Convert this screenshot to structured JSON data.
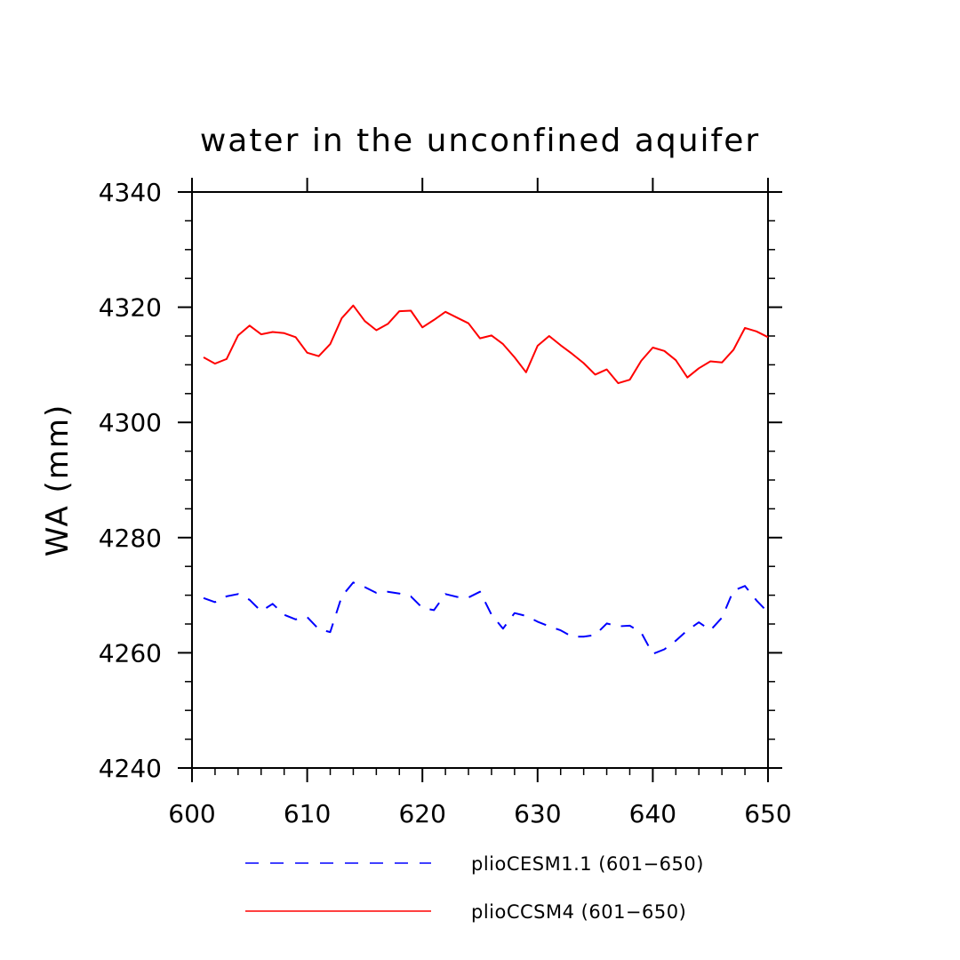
{
  "chart_data": {
    "type": "line",
    "title": "water in the unconfined aquifer",
    "xlabel": "",
    "ylabel": "WA  (mm)",
    "xlim": [
      600,
      650
    ],
    "ylim": [
      4240,
      4340
    ],
    "x_ticks": [
      "600",
      "610",
      "620",
      "630",
      "640",
      "650"
    ],
    "y_ticks": [
      "4240",
      "4260",
      "4280",
      "4300",
      "4320",
      "4340"
    ],
    "grid": false,
    "legend_position": "bottom",
    "x": [
      601,
      602,
      603,
      604,
      605,
      606,
      607,
      608,
      609,
      610,
      611,
      612,
      613,
      614,
      615,
      616,
      617,
      618,
      619,
      620,
      621,
      622,
      623,
      624,
      625,
      626,
      627,
      628,
      629,
      630,
      631,
      632,
      633,
      634,
      635,
      636,
      637,
      638,
      639,
      640,
      641,
      642,
      643,
      644,
      645,
      646,
      647,
      648,
      649,
      650
    ],
    "series": [
      {
        "name": "plioCESM1.1 (601−650)",
        "color": "#0000ff",
        "style": "dashed",
        "values": [
          4269.5,
          4268.8,
          4269.8,
          4270.2,
          4269.2,
          4267.2,
          4268.5,
          4266.6,
          4265.8,
          4266.2,
          4264.1,
          4263.6,
          4269.8,
          4272.2,
          4271.4,
          4270.4,
          4270.6,
          4270.3,
          4269.8,
          4267.8,
          4267.4,
          4270.2,
          4269.7,
          4269.6,
          4270.6,
          4266.6,
          4264.2,
          4266.9,
          4266.4,
          4265.4,
          4264.6,
          4263.9,
          4262.8,
          4262.8,
          4263.1,
          4265.1,
          4264.6,
          4264.7,
          4263.5,
          4259.8,
          4260.6,
          4262.1,
          4263.9,
          4265.3,
          4263.9,
          4266.1,
          4270.8,
          4271.6,
          4269.1,
          4267.0
        ]
      },
      {
        "name": "plioCCSM4 (601−650)",
        "color": "#ff0000",
        "style": "solid",
        "values": [
          4311.3,
          4310.2,
          4311.0,
          4315.1,
          4316.8,
          4315.3,
          4315.7,
          4315.5,
          4314.8,
          4312.1,
          4311.5,
          4313.6,
          4318.1,
          4320.3,
          4317.6,
          4316.0,
          4317.1,
          4319.3,
          4319.4,
          4316.5,
          4317.8,
          4319.2,
          4318.2,
          4317.2,
          4314.6,
          4315.1,
          4313.6,
          4311.3,
          4308.7,
          4313.3,
          4315.0,
          4313.4,
          4311.9,
          4310.3,
          4308.3,
          4309.2,
          4306.8,
          4307.4,
          4310.7,
          4313.0,
          4312.4,
          4310.8,
          4307.8,
          4309.4,
          4310.6,
          4310.4,
          4312.6,
          4316.4,
          4315.8,
          4314.8
        ]
      }
    ]
  }
}
